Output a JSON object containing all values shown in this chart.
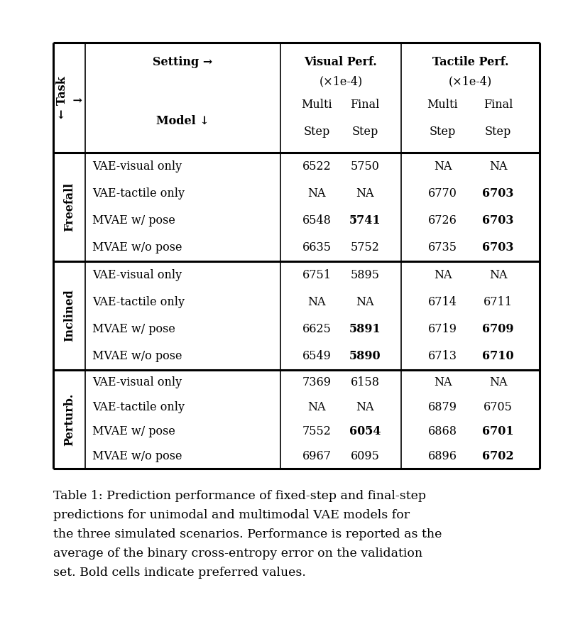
{
  "caption_lines": [
    "Table 1: Prediction performance of fixed-step and final-step",
    "predictions for unimodal and multimodal VAE models for",
    "the three simulated scenarios. Performance is reported as the",
    "average of the binary cross-entropy error on the validation",
    "set. Bold cells indicate preferred values."
  ],
  "task_label": "← Task\n↓",
  "section_labels": [
    "Freefall",
    "Inclined",
    "Perturb."
  ],
  "header": {
    "row1_left": "Setting →",
    "row1_vcol": "Visual Perf.",
    "row1_tcol": "Tactile Perf.",
    "row2_vcol": "(×1e-4)",
    "row2_tcol": "(×1e-4)",
    "row3_left": "Model ↓",
    "row3_cols": [
      "Multi",
      "Final",
      "Multi",
      "Final"
    ],
    "row4_cols": [
      "Step",
      "Step",
      "Step",
      "Step"
    ]
  },
  "sections": [
    {
      "label": "Freefall",
      "rows": [
        {
          "model": "VAE-visual only",
          "vals": [
            "6522",
            "5750",
            "NA",
            "NA"
          ],
          "bold": [
            false,
            false,
            false,
            false
          ]
        },
        {
          "model": "VAE-tactile only",
          "vals": [
            "NA",
            "NA",
            "6770",
            "6703"
          ],
          "bold": [
            false,
            false,
            false,
            true
          ]
        },
        {
          "model": "MVAE w/ pose",
          "vals": [
            "6548",
            "5741",
            "6726",
            "6703"
          ],
          "bold": [
            false,
            true,
            false,
            true
          ]
        },
        {
          "model": "MVAE w/o pose",
          "vals": [
            "6635",
            "5752",
            "6735",
            "6703"
          ],
          "bold": [
            false,
            false,
            false,
            true
          ]
        }
      ]
    },
    {
      "label": "Inclined",
      "rows": [
        {
          "model": "VAE-visual only",
          "vals": [
            "6751",
            "5895",
            "NA",
            "NA"
          ],
          "bold": [
            false,
            false,
            false,
            false
          ]
        },
        {
          "model": "VAE-tactile only",
          "vals": [
            "NA",
            "NA",
            "6714",
            "6711"
          ],
          "bold": [
            false,
            false,
            false,
            false
          ]
        },
        {
          "model": "MVAE w/ pose",
          "vals": [
            "6625",
            "5891",
            "6719",
            "6709"
          ],
          "bold": [
            false,
            true,
            false,
            true
          ]
        },
        {
          "model": "MVAE w/o pose",
          "vals": [
            "6549",
            "5890",
            "6713",
            "6710"
          ],
          "bold": [
            false,
            true,
            false,
            true
          ]
        }
      ]
    },
    {
      "label": "Perturb.",
      "rows": [
        {
          "model": "VAE-visual only",
          "vals": [
            "7369",
            "6158",
            "NA",
            "NA"
          ],
          "bold": [
            false,
            false,
            false,
            false
          ]
        },
        {
          "model": "VAE-tactile only",
          "vals": [
            "NA",
            "NA",
            "6879",
            "6705"
          ],
          "bold": [
            false,
            false,
            false,
            false
          ]
        },
        {
          "model": "MVAE w/ pose",
          "vals": [
            "7552",
            "6054",
            "6868",
            "6701"
          ],
          "bold": [
            false,
            true,
            false,
            true
          ]
        },
        {
          "model": "MVAE w/o pose",
          "vals": [
            "6967",
            "6095",
            "6896",
            "6702"
          ],
          "bold": [
            false,
            false,
            false,
            true
          ]
        }
      ]
    }
  ],
  "bg_color": "#ffffff",
  "text_color": "#000000",
  "line_color": "#000000",
  "font_size": 11.5,
  "caption_font_size": 12.5
}
